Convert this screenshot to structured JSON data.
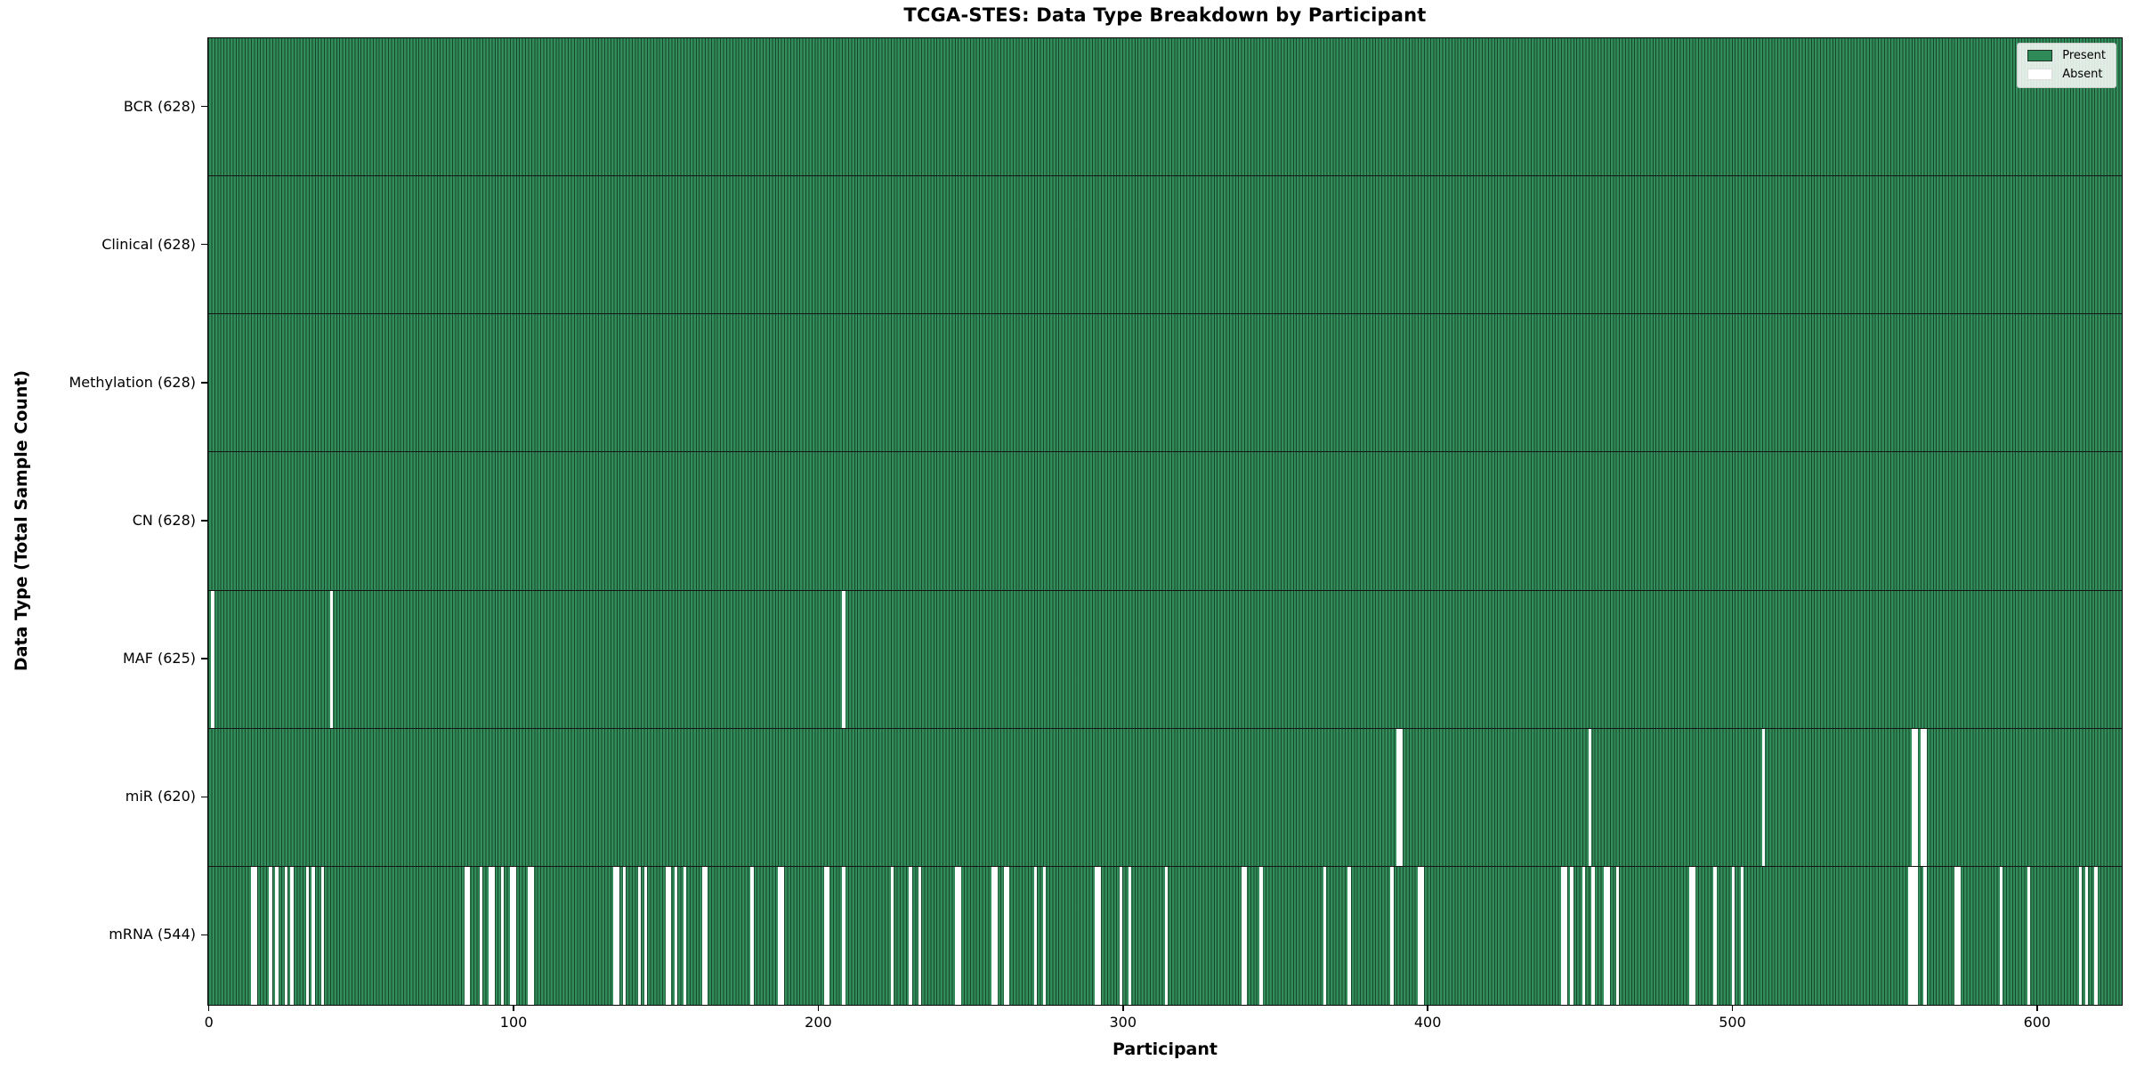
{
  "chart_data": {
    "type": "heatmap",
    "title": "TCGA-STES: Data Type Breakdown by Participant",
    "xlabel": "Participant",
    "ylabel": "Data Type (Total Sample Count)",
    "n_participants": 628,
    "x_axis_range": [
      -0.5,
      627.5
    ],
    "x_ticks": [
      0,
      100,
      200,
      300,
      400,
      500,
      600
    ],
    "grid": false,
    "legend": {
      "position": "upper right",
      "entries": [
        {
          "label": "Present",
          "color": "#2e8b57"
        },
        {
          "label": "Absent",
          "color": "#ffffff"
        }
      ]
    },
    "colors": {
      "present": "#2e8b57",
      "absent": "#ffffff",
      "bar_edge": "rgba(0,0,0,0.5)",
      "row_divider": "#141414",
      "axis": "#000000"
    },
    "rows": [
      {
        "label": "BCR (628)",
        "name": "BCR",
        "present_count": 628,
        "absent_count": 0,
        "absent_participants": []
      },
      {
        "label": "Clinical (628)",
        "name": "Clinical",
        "present_count": 628,
        "absent_count": 0,
        "absent_participants": []
      },
      {
        "label": "Methylation (628)",
        "name": "Methylation",
        "present_count": 628,
        "absent_count": 0,
        "absent_participants": []
      },
      {
        "label": "CN (628)",
        "name": "CN",
        "present_count": 628,
        "absent_count": 0,
        "absent_participants": []
      },
      {
        "label": "MAF (625)",
        "name": "MAF",
        "present_count": 625,
        "absent_count": 3,
        "absent_participants": [
          1,
          40,
          208
        ]
      },
      {
        "label": "miR (620)",
        "name": "miR",
        "present_count": 620,
        "absent_count": 8,
        "absent_participants": [
          390,
          391,
          453,
          510,
          559,
          560,
          562,
          563
        ]
      },
      {
        "label": "mRNA (544)",
        "name": "mRNA",
        "present_count": 544,
        "absent_count": 84,
        "absent_participants": [
          14,
          15,
          20,
          22,
          25,
          27,
          32,
          34,
          37,
          84,
          85,
          89,
          92,
          93,
          96,
          99,
          100,
          105,
          106,
          133,
          134,
          136,
          141,
          143,
          150,
          151,
          153,
          156,
          162,
          163,
          178,
          187,
          188,
          202,
          203,
          208,
          224,
          230,
          233,
          245,
          246,
          257,
          258,
          261,
          262,
          271,
          274,
          291,
          292,
          299,
          302,
          314,
          339,
          340,
          345,
          366,
          374,
          388,
          397,
          398,
          444,
          445,
          447,
          451,
          454,
          458,
          459,
          462,
          486,
          487,
          494,
          500,
          503,
          558,
          559,
          560,
          563,
          573,
          574,
          588,
          597,
          614,
          616,
          619
        ]
      }
    ]
  }
}
